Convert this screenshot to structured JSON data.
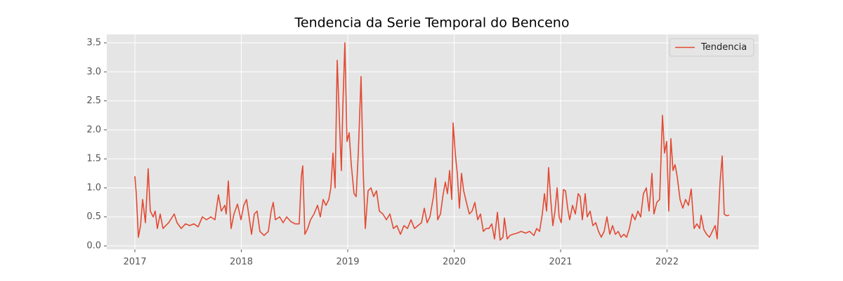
{
  "chart_data": {
    "type": "line",
    "title": "Tendencia da Serie Temporal do Benceno",
    "x": [
      2017.0,
      2017.013,
      2017.033,
      2017.053,
      2017.073,
      2017.099,
      2017.125,
      2017.145,
      2017.172,
      2017.191,
      2017.211,
      2017.238,
      2017.264,
      2017.29,
      2017.317,
      2017.37,
      2017.396,
      2017.436,
      2017.475,
      2017.515,
      2017.554,
      2017.594,
      2017.634,
      2017.673,
      2017.713,
      2017.752,
      2017.785,
      2017.812,
      2017.845,
      2017.858,
      2017.878,
      2017.904,
      2017.931,
      2017.964,
      2017.997,
      2018.023,
      2018.049,
      2018.069,
      2018.096,
      2018.122,
      2018.148,
      2018.175,
      2018.214,
      2018.254,
      2018.28,
      2018.3,
      2018.32,
      2018.36,
      2018.393,
      2018.426,
      2018.465,
      2018.505,
      2018.544,
      2018.564,
      2018.577,
      2018.597,
      2018.624,
      2018.65,
      2018.683,
      2018.716,
      2018.742,
      2018.769,
      2018.795,
      2018.822,
      2018.841,
      2018.861,
      2018.881,
      2018.901,
      2018.921,
      2018.94,
      2018.954,
      2018.973,
      2018.993,
      2019.013,
      2019.033,
      2019.059,
      2019.079,
      2019.099,
      2019.125,
      2019.145,
      2019.165,
      2019.191,
      2019.218,
      2019.244,
      2019.27,
      2019.297,
      2019.33,
      2019.363,
      2019.396,
      2019.429,
      2019.462,
      2019.495,
      2019.528,
      2019.561,
      2019.594,
      2019.627,
      2019.66,
      2019.693,
      2019.719,
      2019.746,
      2019.772,
      2019.805,
      2019.825,
      2019.845,
      2019.871,
      2019.897,
      2019.917,
      2019.937,
      2019.957,
      2019.977,
      2019.99,
      2020.01,
      2020.029,
      2020.049,
      2020.069,
      2020.089,
      2020.115,
      2020.142,
      2020.168,
      2020.194,
      2020.221,
      2020.247,
      2020.274,
      2020.3,
      2020.326,
      2020.353,
      2020.379,
      2020.406,
      2020.432,
      2020.458,
      2020.472,
      2020.498,
      2020.524,
      2020.551,
      2020.59,
      2020.63,
      2020.67,
      2020.709,
      2020.749,
      2020.775,
      2020.802,
      2020.828,
      2020.848,
      2020.868,
      2020.887,
      2020.907,
      2020.927,
      2020.947,
      2020.967,
      2020.986,
      2021.006,
      2021.026,
      2021.046,
      2021.066,
      2021.085,
      2021.112,
      2021.138,
      2021.165,
      2021.184,
      2021.204,
      2021.231,
      2021.25,
      2021.277,
      2021.303,
      2021.33,
      2021.356,
      2021.382,
      2021.409,
      2021.435,
      2021.462,
      2021.488,
      2021.514,
      2021.541,
      2021.567,
      2021.594,
      2021.62,
      2021.646,
      2021.673,
      2021.699,
      2021.726,
      2021.752,
      2021.778,
      2021.805,
      2021.831,
      2021.858,
      2021.877,
      2021.904,
      2021.93,
      2021.957,
      2021.976,
      2021.996,
      2022.016,
      2022.036,
      2022.056,
      2022.075,
      2022.095,
      2022.122,
      2022.148,
      2022.174,
      2022.201,
      2022.227,
      2022.254,
      2022.28,
      2022.306,
      2022.32,
      2022.346,
      2022.372,
      2022.399,
      2022.425,
      2022.452,
      2022.471,
      2022.498,
      2022.518,
      2022.537,
      2022.557,
      2022.584
    ],
    "series": [
      {
        "name": "Tendencia",
        "color": "#E24A33",
        "values": [
          1.2,
          0.9,
          0.15,
          0.35,
          0.8,
          0.4,
          1.33,
          0.6,
          0.5,
          0.6,
          0.3,
          0.55,
          0.3,
          0.35,
          0.4,
          0.55,
          0.4,
          0.3,
          0.38,
          0.35,
          0.38,
          0.33,
          0.5,
          0.45,
          0.5,
          0.45,
          0.88,
          0.6,
          0.7,
          0.55,
          1.12,
          0.3,
          0.55,
          0.72,
          0.45,
          0.7,
          0.8,
          0.55,
          0.2,
          0.55,
          0.6,
          0.25,
          0.18,
          0.25,
          0.6,
          0.75,
          0.45,
          0.5,
          0.4,
          0.5,
          0.42,
          0.38,
          0.38,
          1.2,
          1.38,
          0.2,
          0.3,
          0.45,
          0.55,
          0.7,
          0.5,
          0.8,
          0.7,
          0.8,
          1.0,
          1.6,
          1.0,
          3.2,
          2.2,
          1.3,
          2.4,
          3.5,
          1.8,
          1.95,
          1.4,
          0.9,
          0.85,
          1.6,
          2.92,
          1.3,
          0.3,
          0.95,
          1.0,
          0.85,
          0.95,
          0.6,
          0.55,
          0.45,
          0.55,
          0.3,
          0.35,
          0.2,
          0.35,
          0.3,
          0.45,
          0.3,
          0.35,
          0.4,
          0.65,
          0.4,
          0.5,
          0.85,
          1.17,
          0.45,
          0.55,
          0.9,
          1.1,
          0.9,
          1.3,
          0.8,
          2.12,
          1.6,
          1.25,
          0.65,
          1.25,
          0.95,
          0.75,
          0.55,
          0.6,
          0.75,
          0.45,
          0.55,
          0.25,
          0.3,
          0.3,
          0.38,
          0.12,
          0.58,
          0.1,
          0.15,
          0.48,
          0.12,
          0.18,
          0.2,
          0.22,
          0.25,
          0.22,
          0.25,
          0.18,
          0.3,
          0.25,
          0.55,
          0.9,
          0.6,
          1.35,
          0.8,
          0.35,
          0.6,
          1.0,
          0.5,
          0.4,
          0.97,
          0.95,
          0.65,
          0.45,
          0.7,
          0.55,
          0.9,
          0.85,
          0.45,
          0.9,
          0.5,
          0.6,
          0.35,
          0.4,
          0.25,
          0.15,
          0.25,
          0.5,
          0.2,
          0.35,
          0.2,
          0.25,
          0.15,
          0.2,
          0.15,
          0.3,
          0.55,
          0.45,
          0.6,
          0.5,
          0.9,
          1.0,
          0.6,
          1.25,
          0.55,
          0.75,
          0.8,
          2.25,
          1.6,
          1.8,
          0.6,
          1.85,
          1.3,
          1.4,
          1.2,
          0.8,
          0.65,
          0.8,
          0.7,
          0.98,
          0.3,
          0.38,
          0.3,
          0.53,
          0.28,
          0.2,
          0.15,
          0.25,
          0.35,
          0.12,
          1.1,
          1.55,
          0.55,
          0.52,
          0.53
        ]
      }
    ],
    "xlim": [
      2016.736,
      2022.861
    ],
    "xticks": [
      2017,
      2018,
      2019,
      2020,
      2021,
      2022
    ],
    "ylim": [
      -0.06,
      3.645
    ],
    "yticks": [
      {
        "value": 0,
        "label": "0.0"
      },
      0.5,
      {
        "value": 1,
        "label": "1.0"
      },
      1.5,
      {
        "value": 2,
        "label": "2.0"
      },
      2.5,
      {
        "value": 3,
        "label": "3.0"
      },
      3.5
    ],
    "grid": true,
    "legend": "upper right"
  }
}
